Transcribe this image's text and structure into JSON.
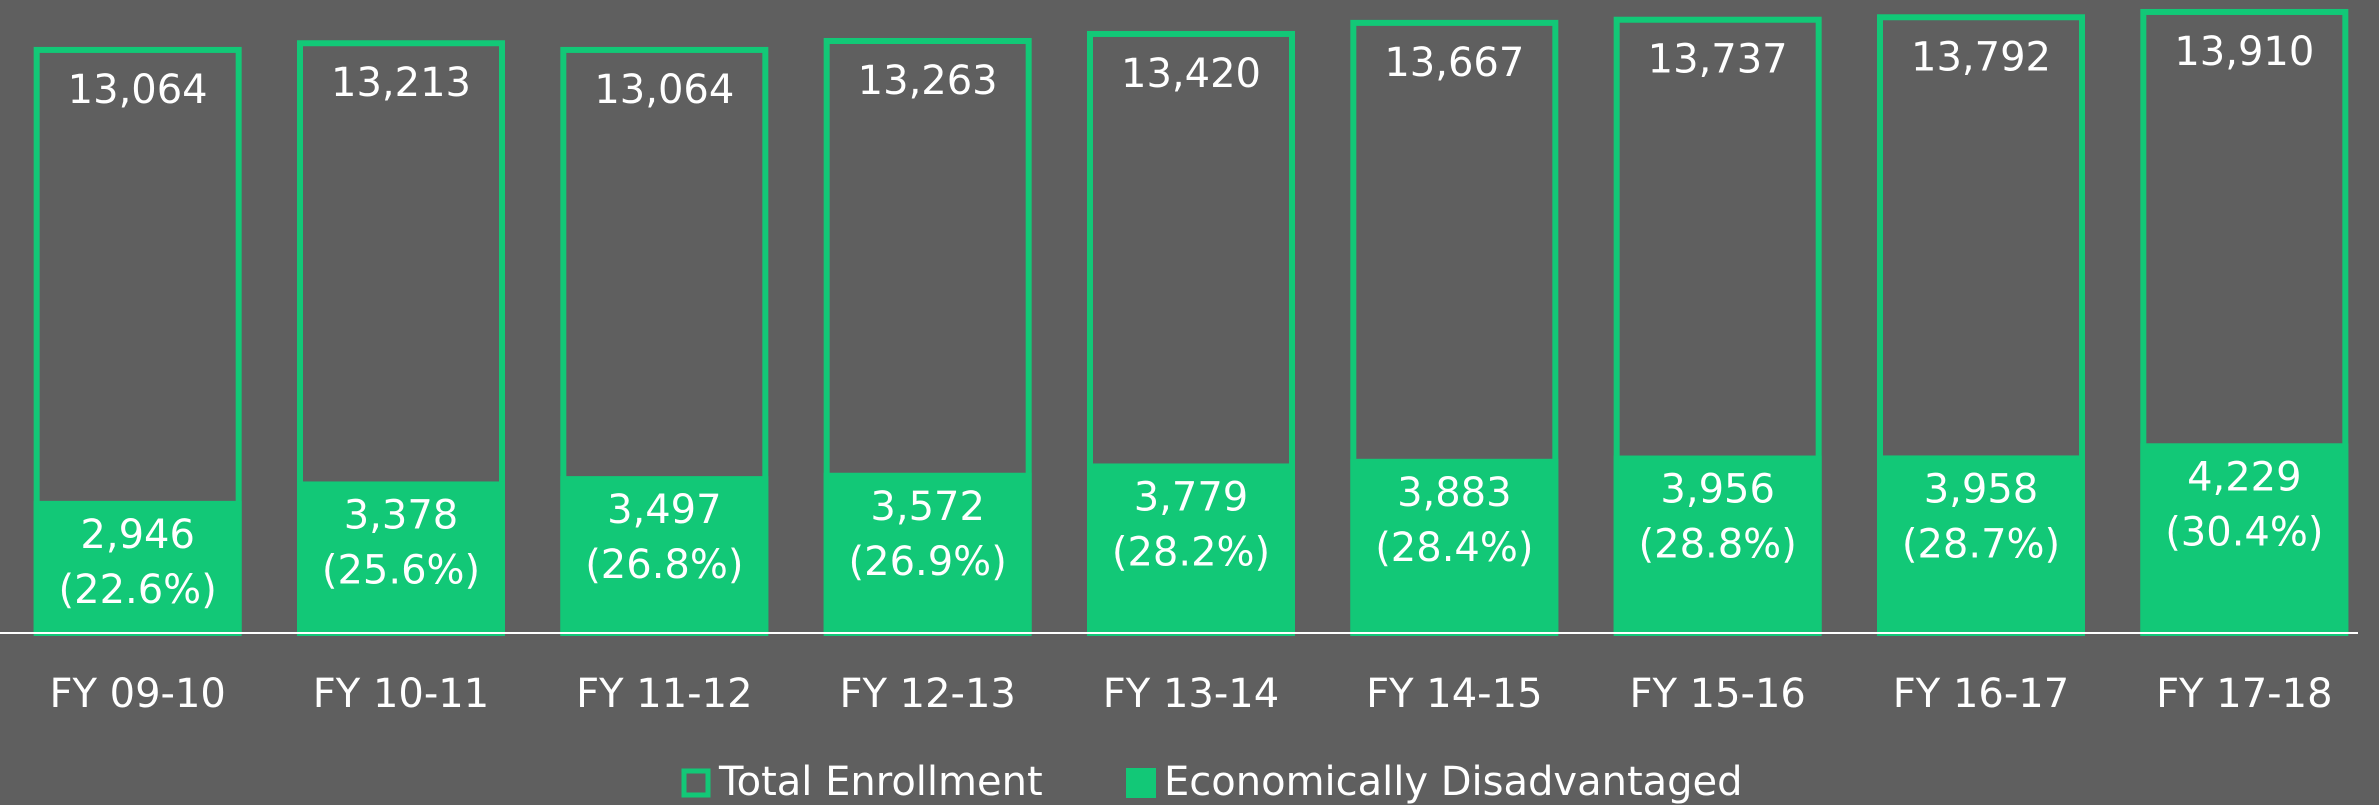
{
  "chart_data": {
    "type": "overlap_bar",
    "categories": [
      "FY 09-10",
      "FY 10-11",
      "FY 11-12",
      "FY 12-13",
      "FY 13-14",
      "FY 14-15",
      "FY 15-16",
      "FY 16-17",
      "FY 17-18"
    ],
    "series": [
      {
        "name": "Total Enrollment",
        "color": "#12c877",
        "style": "outline",
        "values": [
          13064,
          13213,
          13064,
          13263,
          13420,
          13667,
          13737,
          13792,
          13910
        ],
        "value_labels": [
          "13,064",
          "13,213",
          "13,064",
          "13,263",
          "13,420",
          "13,667",
          "13,737",
          "13,792",
          "13,910"
        ]
      },
      {
        "name": "Economically Disadvantaged",
        "color": "#12c877",
        "style": "filled",
        "values": [
          2946,
          3378,
          3497,
          3572,
          3779,
          3883,
          3956,
          3958,
          4229
        ],
        "value_labels": [
          "2,946",
          "3,378",
          "3,497",
          "3,572",
          "3,779",
          "3,883",
          "3,956",
          "3,958",
          "4,229"
        ],
        "share_values": [
          22.6,
          25.6,
          26.8,
          26.9,
          28.2,
          28.4,
          28.8,
          28.7,
          30.4
        ],
        "share_labels": [
          "(22.6%)",
          "(25.6%)",
          "(26.8%)",
          "(26.9%)",
          "(28.2%)",
          "(28.4%)",
          "(28.8%)",
          "(28.7%)",
          "(30.4%)"
        ]
      }
    ],
    "ylim": [
      0,
      14110
    ]
  }
}
